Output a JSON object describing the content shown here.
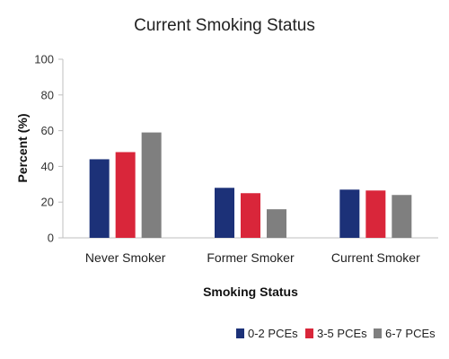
{
  "chart_data": {
    "type": "bar",
    "title": "Current Smoking Status",
    "xlabel": "Smoking Status",
    "ylabel": "Percent (%)",
    "ylim": [
      0,
      100
    ],
    "yticks": [
      "0",
      "20",
      "40",
      "60",
      "80",
      "100"
    ],
    "categories": [
      "Never Smoker",
      "Former Smoker",
      "Current Smoker"
    ],
    "series": [
      {
        "name": "0-2 PCEs",
        "color": "#1c3178",
        "values": [
          44,
          28,
          27
        ]
      },
      {
        "name": "3-5 PCEs",
        "color": "#d9263a",
        "values": [
          48,
          25,
          26.5
        ]
      },
      {
        "name": "6-7 PCEs",
        "color": "#7f7f7f",
        "values": [
          59,
          16,
          24
        ]
      }
    ],
    "grid": false,
    "legend_position": "bottom-right"
  }
}
